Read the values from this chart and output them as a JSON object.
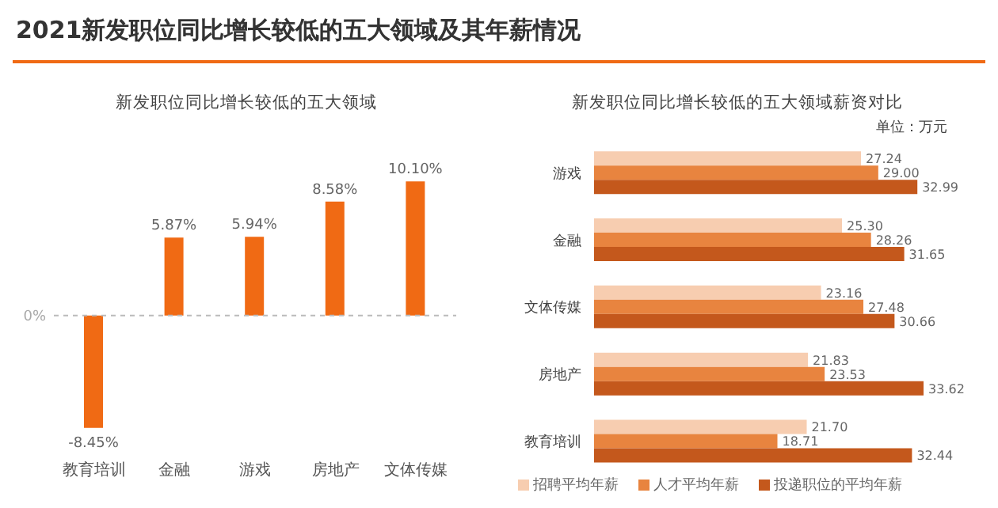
{
  "chart_data": [
    {
      "type": "bar",
      "title": "2021新发职位同比增长较低的五大领域及其年薪情况",
      "subtitle": "新发职位同比增长较低的五大领域",
      "categories": [
        "教育培训",
        "金融",
        "游戏",
        "房地产",
        "文体传媒"
      ],
      "values": [
        -8.45,
        5.87,
        5.94,
        8.58,
        10.1
      ],
      "value_labels": [
        "-8.45%",
        "5.87%",
        "5.94%",
        "8.58%",
        "10.10%"
      ],
      "color": "#f06a14",
      "ref_lines": [
        {
          "axis": "y",
          "value": 0,
          "label": "0%",
          "line_style": "dashed",
          "color": "#bbbbbb"
        }
      ]
    },
    {
      "type": "bar",
      "orientation": "horizontal",
      "title": "新发职位同比增长较低的五大领域薪资对比",
      "annotations": [
        "单位：万元"
      ],
      "categories": [
        "游戏",
        "金融",
        "文体传媒",
        "房地产",
        "教育培训"
      ],
      "series": [
        {
          "name": "招聘平均年薪",
          "color": "#f7cdb0",
          "values": [
            27.24,
            25.3,
            23.16,
            21.83,
            21.7
          ],
          "value_labels": [
            "27.24",
            "25.30",
            "23.16",
            "21.83",
            "21.70"
          ]
        },
        {
          "name": "人才平均年薪",
          "color": "#e8843f",
          "values": [
            29.0,
            28.26,
            27.48,
            23.53,
            18.71
          ],
          "value_labels": [
            "29.00",
            "28.26",
            "27.48",
            "23.53",
            "18.71"
          ]
        },
        {
          "name": "投递职位的平均年薪",
          "color": "#c4581c",
          "values": [
            32.99,
            31.65,
            30.66,
            33.62,
            32.44
          ],
          "value_labels": [
            "32.99",
            "31.65",
            "30.66",
            "33.62",
            "32.44"
          ]
        }
      ],
      "legend": "bottom"
    }
  ]
}
